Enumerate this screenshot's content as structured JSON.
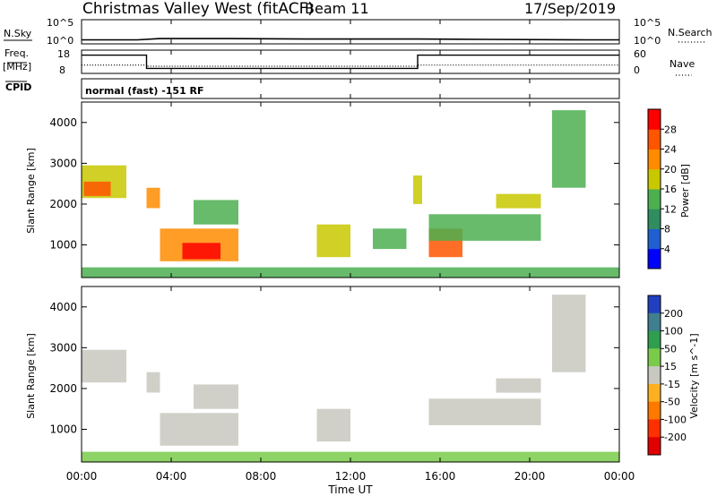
{
  "header": {
    "title": "Christmas Valley West (fitACF)",
    "beam": "Beam 11",
    "date": "17/Sep/2019"
  },
  "aux_panels": {
    "nsky_label": "N.Sky",
    "nsearch_label": "N.Search",
    "freq_label_line1": "Freq.",
    "freq_label_line2": "[MHz]",
    "nave_label": "Nave",
    "cpid_label": "CPID",
    "cpid_text": "normal (fast) -151 RF",
    "noise_left_ticks": [
      "10^5",
      "10^0"
    ],
    "noise_right_ticks": [
      "10^5",
      "10^0"
    ],
    "freq_left_ticks": [
      "18",
      "8"
    ],
    "freq_right_ticks": [
      "60",
      "0"
    ]
  },
  "x_axis": {
    "label": "Time UT",
    "ticks": [
      "00:00",
      "04:00",
      "08:00",
      "12:00",
      "16:00",
      "20:00",
      "00:00"
    ]
  },
  "power_colorbar": {
    "label": "Power [dB]",
    "ticks": [
      "4",
      "8",
      "12",
      "16",
      "20",
      "24",
      "28"
    ],
    "colors": [
      "#0000ff",
      "#1f5fd0",
      "#2f8d5f",
      "#4caf50",
      "#c8c800",
      "#ff8c00",
      "#ff5500",
      "#ff0000"
    ]
  },
  "velocity_colorbar": {
    "label": "Velocity [m s^-1]",
    "ticks": [
      "200",
      "100",
      "50",
      "15",
      "-15",
      "-50",
      "-100",
      "-200"
    ],
    "colors": [
      "#2040c0",
      "#3f7f8f",
      "#2f9e4f",
      "#7acb4a",
      "#c8c8c0",
      "#ffb020",
      "#ff7800",
      "#ff3000",
      "#e00000"
    ]
  },
  "chart_data": [
    {
      "type": "line",
      "title": "N.Sky / N.Search",
      "x": [
        0,
        2.5,
        3.5,
        6.5,
        10,
        15,
        18,
        22.5,
        24
      ],
      "y_sky_log10": [
        0.35,
        0.35,
        0.65,
        0.65,
        0.55,
        0.55,
        0.45,
        0.35,
        0.35
      ],
      "ylim": [
        0,
        5
      ]
    },
    {
      "type": "line",
      "title": "Freq. / Nave",
      "x": [
        0,
        2.9,
        2.9,
        15,
        15,
        24
      ],
      "freq": [
        17.2,
        17.2,
        9.8,
        9.8,
        17.2,
        17.2
      ],
      "nave": [
        22,
        22,
        18,
        18,
        22,
        22
      ],
      "ylim_freq": [
        8,
        18
      ],
      "ylim_nave": [
        0,
        60
      ]
    },
    {
      "type": "heatmap",
      "title": "Power [dB]",
      "xlabel": "Time UT",
      "ylabel": "Slant Range [km]",
      "xlim": [
        0,
        24
      ],
      "ylim": [
        200,
        4500
      ],
      "y_ticks": [
        1000,
        2000,
        3000,
        4000
      ],
      "regions": [
        {
          "t0": 0.0,
          "t1": 2.0,
          "r0": 2150,
          "r1": 2950,
          "p": 18
        },
        {
          "t0": 0.1,
          "t1": 1.3,
          "r0": 2200,
          "r1": 2550,
          "p": 26
        },
        {
          "t0": 2.9,
          "t1": 3.5,
          "r0": 1900,
          "r1": 2400,
          "p": 20
        },
        {
          "t0": 3.5,
          "t1": 7.0,
          "r0": 600,
          "r1": 1400,
          "p": 20
        },
        {
          "t0": 4.5,
          "t1": 6.2,
          "r0": 650,
          "r1": 1050,
          "p": 28
        },
        {
          "t0": 5.0,
          "t1": 7.0,
          "r0": 1500,
          "r1": 2100,
          "p": 14
        },
        {
          "t0": 10.5,
          "t1": 12.0,
          "r0": 700,
          "r1": 1500,
          "p": 16
        },
        {
          "t0": 13.0,
          "t1": 14.5,
          "r0": 900,
          "r1": 1400,
          "p": 14
        },
        {
          "t0": 14.8,
          "t1": 15.2,
          "r0": 2000,
          "r1": 2700,
          "p": 18
        },
        {
          "t0": 15.5,
          "t1": 17.0,
          "r0": 700,
          "r1": 1400,
          "p": 24
        },
        {
          "t0": 15.5,
          "t1": 20.5,
          "r0": 1100,
          "r1": 1750,
          "p": 14
        },
        {
          "t0": 18.5,
          "t1": 20.5,
          "r0": 1900,
          "r1": 2250,
          "p": 18
        },
        {
          "t0": 21.0,
          "t1": 22.5,
          "r0": 2400,
          "r1": 4300,
          "p": 12
        },
        {
          "t0": 0.0,
          "t1": 24.0,
          "r0": 200,
          "r1": 450,
          "p": 12
        }
      ]
    },
    {
      "type": "heatmap",
      "title": "Velocity [m s^-1]",
      "xlabel": "Time UT",
      "ylabel": "Slant Range [km]",
      "xlim": [
        0,
        24
      ],
      "ylim": [
        200,
        4500
      ],
      "y_ticks": [
        1000,
        2000,
        3000,
        4000
      ],
      "regions": [
        {
          "t0": 0.0,
          "t1": 2.0,
          "r0": 2150,
          "r1": 2950,
          "v": 0
        },
        {
          "t0": 2.9,
          "t1": 3.5,
          "r0": 1900,
          "r1": 2400,
          "v": 0
        },
        {
          "t0": 3.5,
          "t1": 7.0,
          "r0": 600,
          "r1": 1400,
          "v": 0
        },
        {
          "t0": 5.0,
          "t1": 7.0,
          "r0": 1500,
          "r1": 2100,
          "v": 0
        },
        {
          "t0": 10.5,
          "t1": 12.0,
          "r0": 700,
          "r1": 1500,
          "v": 0
        },
        {
          "t0": 15.5,
          "t1": 20.5,
          "r0": 1100,
          "r1": 1750,
          "v": 0
        },
        {
          "t0": 18.5,
          "t1": 20.5,
          "r0": 1900,
          "r1": 2250,
          "v": 0
        },
        {
          "t0": 21.0,
          "t1": 22.5,
          "r0": 2400,
          "r1": 4300,
          "v": 0
        },
        {
          "t0": 0.0,
          "t1": 24.0,
          "r0": 200,
          "r1": 450,
          "v": 35
        }
      ]
    }
  ]
}
